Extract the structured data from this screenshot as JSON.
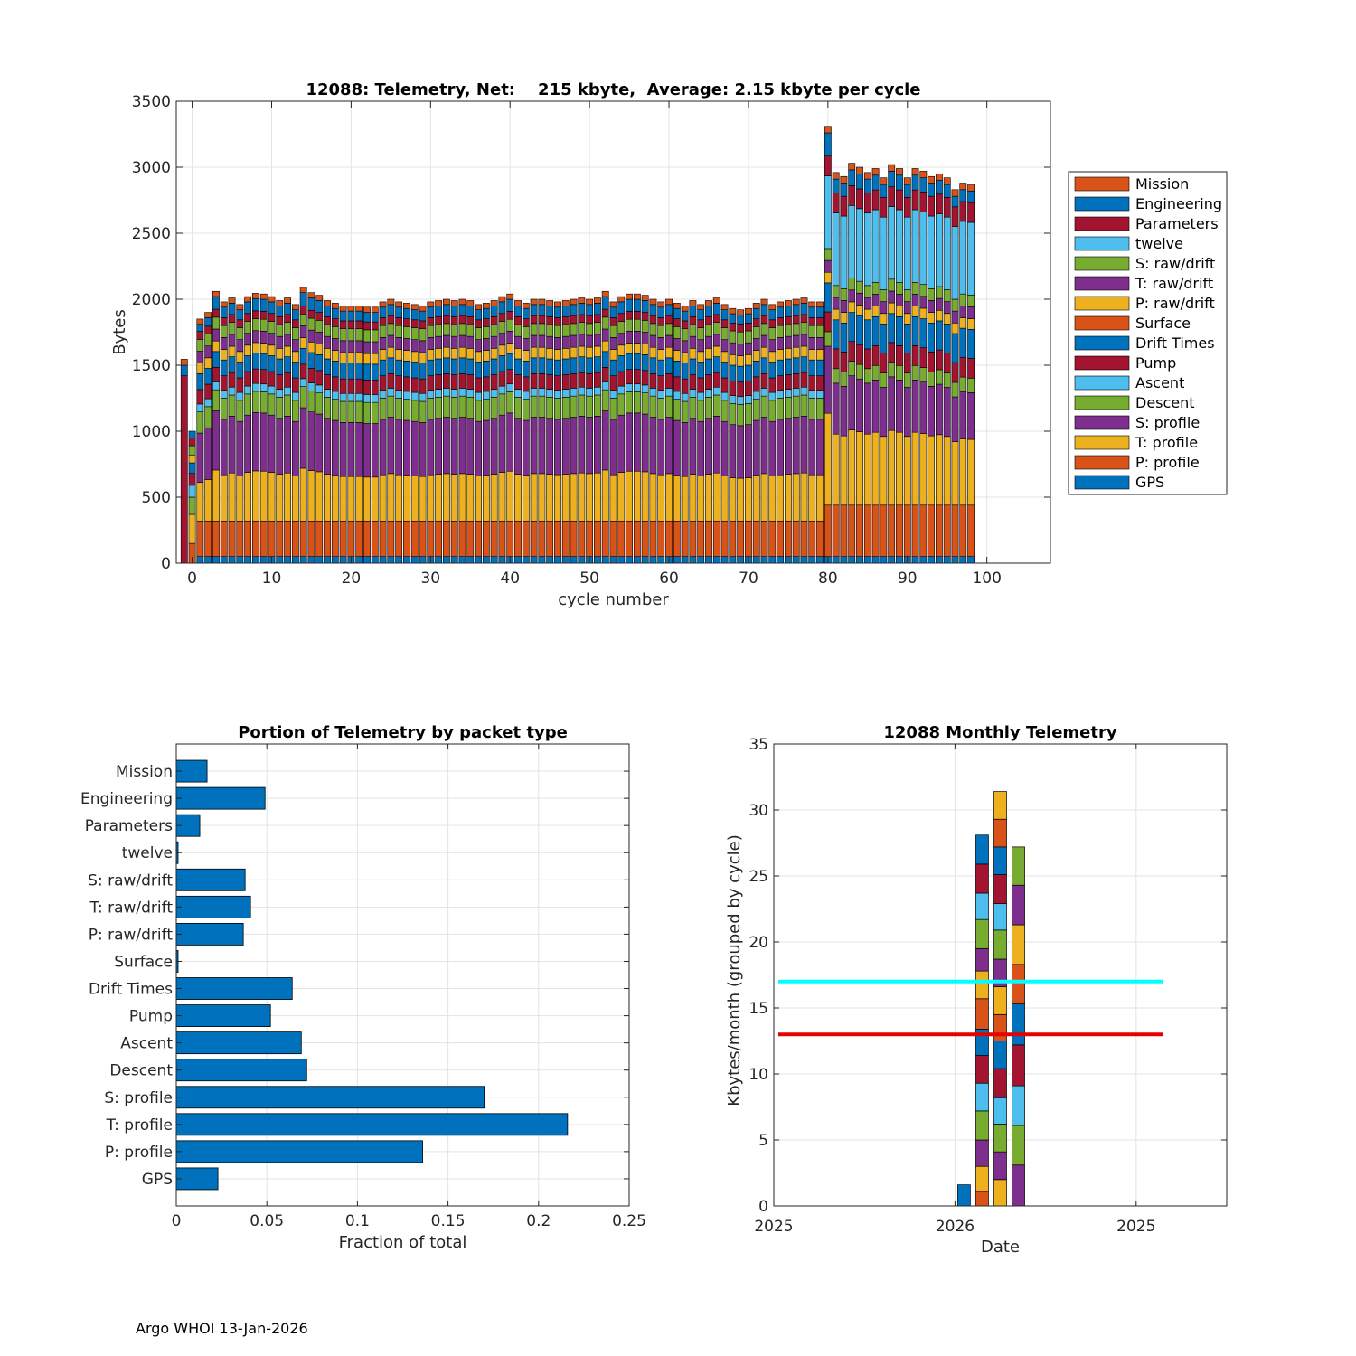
{
  "footer": "Argo WHOI 13-Jan-2026",
  "colors": {
    "orange": "#D95319",
    "blue": "#0072BD",
    "red": "#A2142F",
    "cyan": "#4DBEEE",
    "green": "#77AC30",
    "purple": "#7E2F8E",
    "yellow": "#EDB120"
  },
  "chart_data": [
    {
      "type": "bar",
      "stacked": true,
      "title": "12088: Telemetry, Net:    215 kbyte,  Average: 2.15 kbyte per cycle",
      "xlabel": "cycle number",
      "ylabel": "Bytes",
      "xlim": [
        -2,
        108
      ],
      "ylim": [
        0,
        3500
      ],
      "xticks": [
        0,
        10,
        20,
        30,
        40,
        50,
        60,
        70,
        80,
        90,
        100
      ],
      "yticks": [
        0,
        500,
        1000,
        1500,
        2000,
        2500,
        3000,
        3500
      ],
      "grid": true,
      "legend_position": "outside-right",
      "legend": [
        "Mission",
        "Engineering",
        "Parameters",
        "twelve",
        "S: raw/drift",
        "T: raw/drift",
        "P: raw/drift",
        "Surface",
        "Drift Times",
        "Pump",
        "Ascent",
        "Descent",
        "S: profile",
        "T: profile",
        "P: profile",
        "GPS"
      ],
      "stack_order_bottom_to_top": [
        "GPS",
        "P: profile",
        "T: profile",
        "S: profile",
        "Descent",
        "Ascent",
        "Pump",
        "Drift Times",
        "Surface",
        "P: raw/drift",
        "T: raw/drift",
        "S: raw/drift",
        "twelve",
        "Parameters",
        "Engineering",
        "Mission"
      ],
      "series_colors": {
        "GPS": "#0072BD",
        "P: profile": "#D95319",
        "T: profile": "#EDB120",
        "S: profile": "#7E2F8E",
        "Descent": "#77AC30",
        "Ascent": "#4DBEEE",
        "Pump": "#A2142F",
        "Drift Times": "#0072BD",
        "Surface": "#D95319",
        "P: raw/drift": "#EDB120",
        "T: raw/drift": "#7E2F8E",
        "S: raw/drift": "#77AC30",
        "twelve": "#4DBEEE",
        "Parameters": "#A2142F",
        "Engineering": "#0072BD",
        "Mission": "#D95319"
      },
      "special_cycles": [
        {
          "cycle": -1,
          "segments": {
            "Pump": 1420,
            "Engineering": 80,
            "Mission": 45
          }
        },
        {
          "cycle": 0,
          "segments": {
            "P: profile": 150,
            "T: profile": 220,
            "Descent": 130,
            "Ascent": 90,
            "Pump": 90,
            "Drift Times": 80,
            "P: raw/drift": 60,
            "S: raw/drift": 70,
            "Parameters": 60,
            "Engineering": 50
          }
        }
      ],
      "normal_segments": {
        "GPS": 50,
        "P: profile": 270,
        "T: profile": 440,
        "S: profile": 490,
        "Descent": 160,
        "Ascent": 60,
        "Pump": 110,
        "Drift Times": 120,
        "P: raw/drift": 80,
        "T: raw/drift": 90,
        "S: raw/drift": 90,
        "Parameters": 60,
        "Engineering": 120,
        "Mission": 40
      },
      "high_segments": {
        "GPS": 50,
        "P: profile": 390,
        "T: profile": 570,
        "S: profile": 410,
        "Descent": 110,
        "twelve": 550,
        "Pump": 150,
        "Drift Times": 220,
        "P: raw/drift": 80,
        "T: raw/drift": 90,
        "S: raw/drift": 90,
        "Parameters": 150,
        "Engineering": 120,
        "Mission": 50
      },
      "cycle_totals": [
        {
          "cycle": -1,
          "total": 1545
        },
        {
          "cycle": 0,
          "total": 1010
        },
        {
          "cycle": 1,
          "total": 1850
        },
        {
          "cycle": 2,
          "total": 1900
        },
        {
          "cycle": 3,
          "total": 2060
        },
        {
          "cycle": 4,
          "total": 1980
        },
        {
          "cycle": 5,
          "total": 2010
        },
        {
          "cycle": 6,
          "total": 1960
        },
        {
          "cycle": 7,
          "total": 2020
        },
        {
          "cycle": 8,
          "total": 2045
        },
        {
          "cycle": 9,
          "total": 2040
        },
        {
          "cycle": 10,
          "total": 2020
        },
        {
          "cycle": 11,
          "total": 1990
        },
        {
          "cycle": 12,
          "total": 2010
        },
        {
          "cycle": 13,
          "total": 1960
        },
        {
          "cycle": 14,
          "total": 2090
        },
        {
          "cycle": 15,
          "total": 2050
        },
        {
          "cycle": 16,
          "total": 2030
        },
        {
          "cycle": 17,
          "total": 1990
        },
        {
          "cycle": 18,
          "total": 1970
        },
        {
          "cycle": 19,
          "total": 1950
        },
        {
          "cycle": 20,
          "total": 1950
        },
        {
          "cycle": 21,
          "total": 1950
        },
        {
          "cycle": 22,
          "total": 1940
        },
        {
          "cycle": 23,
          "total": 1940
        },
        {
          "cycle": 24,
          "total": 1980
        },
        {
          "cycle": 25,
          "total": 2000
        },
        {
          "cycle": 26,
          "total": 1980
        },
        {
          "cycle": 27,
          "total": 1970
        },
        {
          "cycle": 28,
          "total": 1960
        },
        {
          "cycle": 29,
          "total": 1950
        },
        {
          "cycle": 30,
          "total": 1980
        },
        {
          "cycle": 31,
          "total": 1990
        },
        {
          "cycle": 32,
          "total": 2000
        },
        {
          "cycle": 33,
          "total": 1990
        },
        {
          "cycle": 34,
          "total": 2000
        },
        {
          "cycle": 35,
          "total": 1990
        },
        {
          "cycle": 36,
          "total": 1960
        },
        {
          "cycle": 37,
          "total": 1970
        },
        {
          "cycle": 38,
          "total": 1990
        },
        {
          "cycle": 39,
          "total": 2020
        },
        {
          "cycle": 40,
          "total": 2040
        },
        {
          "cycle": 41,
          "total": 1990
        },
        {
          "cycle": 42,
          "total": 1970
        },
        {
          "cycle": 43,
          "total": 2000
        },
        {
          "cycle": 44,
          "total": 2000
        },
        {
          "cycle": 45,
          "total": 1990
        },
        {
          "cycle": 46,
          "total": 1980
        },
        {
          "cycle": 47,
          "total": 1990
        },
        {
          "cycle": 48,
          "total": 2000
        },
        {
          "cycle": 49,
          "total": 2010
        },
        {
          "cycle": 50,
          "total": 2000
        },
        {
          "cycle": 51,
          "total": 2010
        },
        {
          "cycle": 52,
          "total": 2060
        },
        {
          "cycle": 53,
          "total": 1980
        },
        {
          "cycle": 54,
          "total": 2020
        },
        {
          "cycle": 55,
          "total": 2040
        },
        {
          "cycle": 56,
          "total": 2040
        },
        {
          "cycle": 57,
          "total": 2030
        },
        {
          "cycle": 58,
          "total": 2000
        },
        {
          "cycle": 59,
          "total": 1980
        },
        {
          "cycle": 60,
          "total": 2000
        },
        {
          "cycle": 61,
          "total": 1970
        },
        {
          "cycle": 62,
          "total": 1950
        },
        {
          "cycle": 63,
          "total": 1990
        },
        {
          "cycle": 64,
          "total": 1960
        },
        {
          "cycle": 65,
          "total": 1990
        },
        {
          "cycle": 66,
          "total": 2010
        },
        {
          "cycle": 67,
          "total": 1960
        },
        {
          "cycle": 68,
          "total": 1930
        },
        {
          "cycle": 69,
          "total": 1920
        },
        {
          "cycle": 70,
          "total": 1930
        },
        {
          "cycle": 71,
          "total": 1970
        },
        {
          "cycle": 72,
          "total": 2000
        },
        {
          "cycle": 73,
          "total": 1960
        },
        {
          "cycle": 74,
          "total": 1980
        },
        {
          "cycle": 75,
          "total": 1990
        },
        {
          "cycle": 76,
          "total": 2000
        },
        {
          "cycle": 77,
          "total": 2010
        },
        {
          "cycle": 78,
          "total": 1980
        },
        {
          "cycle": 79,
          "total": 1980
        },
        {
          "cycle": 80,
          "total": 3310
        },
        {
          "cycle": 81,
          "total": 2960
        },
        {
          "cycle": 82,
          "total": 2930
        },
        {
          "cycle": 83,
          "total": 3030
        },
        {
          "cycle": 84,
          "total": 3000
        },
        {
          "cycle": 85,
          "total": 2960
        },
        {
          "cycle": 86,
          "total": 2990
        },
        {
          "cycle": 87,
          "total": 2920
        },
        {
          "cycle": 88,
          "total": 3020
        },
        {
          "cycle": 89,
          "total": 2990
        },
        {
          "cycle": 90,
          "total": 2920
        },
        {
          "cycle": 91,
          "total": 2990
        },
        {
          "cycle": 92,
          "total": 2970
        },
        {
          "cycle": 93,
          "total": 2930
        },
        {
          "cycle": 94,
          "total": 2950
        },
        {
          "cycle": 95,
          "total": 2920
        },
        {
          "cycle": 96,
          "total": 2830
        },
        {
          "cycle": 97,
          "total": 2880
        },
        {
          "cycle": 98,
          "total": 2870
        }
      ]
    },
    {
      "type": "bar",
      "orientation": "horizontal",
      "title": "Portion of Telemetry by packet type",
      "xlabel": "Fraction of total",
      "xlim": [
        0,
        0.25
      ],
      "xticks": [
        "0",
        "0.05",
        "0.1",
        "0.15",
        "0.2",
        "0.25"
      ],
      "grid": true,
      "bar_color": "#0072BD",
      "categories": [
        "Mission",
        "Engineering",
        "Parameters",
        "twelve",
        "S: raw/drift",
        "T: raw/drift",
        "P: raw/drift",
        "Surface",
        "Drift Times",
        "Pump",
        "Ascent",
        "Descent",
        "S: profile",
        "T: profile",
        "P: profile",
        "GPS"
      ],
      "values": [
        0.017,
        0.049,
        0.013,
        0.001,
        0.038,
        0.041,
        0.037,
        0.001,
        0.064,
        0.052,
        0.069,
        0.072,
        0.17,
        0.216,
        0.136,
        0.023
      ]
    },
    {
      "type": "bar",
      "stacked": true,
      "title": "12088 Monthly Telemetry",
      "xlabel": "Date",
      "ylabel": "Kbytes/month (grouped by cycle)",
      "ylim": [
        0,
        35
      ],
      "yticks": [
        0,
        5,
        10,
        15,
        20,
        25,
        30,
        35
      ],
      "xtick_labels": [
        "2025",
        "2026",
        "2025"
      ],
      "grid": true,
      "segment_color_cycle": [
        "#0072BD",
        "#D95319",
        "#EDB120",
        "#7E2F8E",
        "#77AC30",
        "#4DBEEE",
        "#A2142F"
      ],
      "bars": [
        {
          "position": 0.42,
          "segments": [
            1.6
          ]
        },
        {
          "position": 0.46,
          "segments": [
            1.1,
            1.9,
            2.0,
            2.2,
            2.1,
            2.1,
            2.0,
            2.3,
            2.1,
            1.7,
            2.2,
            2.0,
            2.2,
            2.2
          ]
        },
        {
          "position": 0.5,
          "segments": [
            2.0,
            2.1,
            2.1,
            2.0,
            2.2,
            2.1,
            2.0,
            2.1,
            2.1,
            2.2,
            2.0,
            2.2,
            2.1,
            2.1,
            2.1
          ]
        },
        {
          "position": 0.54,
          "segments": [
            3.1,
            3.0,
            3.0,
            3.1,
            3.1,
            3.0,
            3.0,
            3.0,
            2.9
          ]
        }
      ],
      "reference_lines": [
        {
          "label": "cyan",
          "y": 17,
          "color": "#00FFFF"
        },
        {
          "label": "red",
          "y": 13,
          "color": "#E60000"
        }
      ]
    }
  ]
}
